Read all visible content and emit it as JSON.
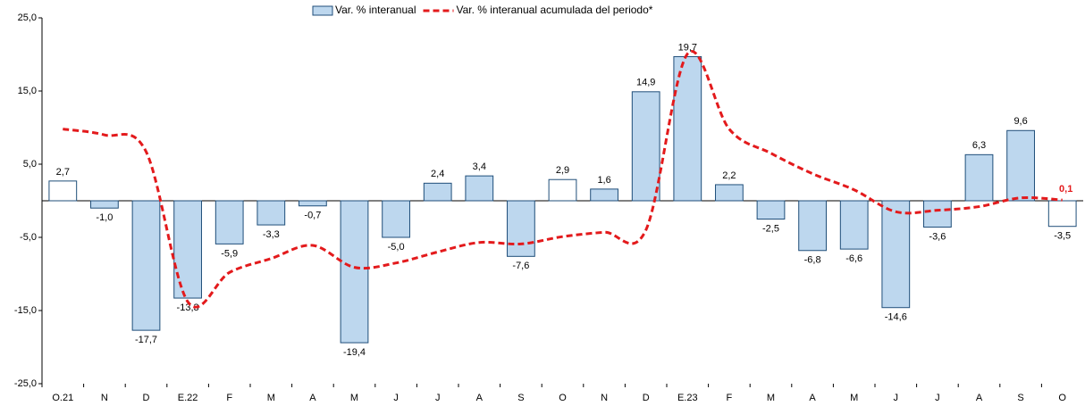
{
  "chart_data": {
    "type": "bar",
    "categories": [
      "O.21",
      "N",
      "D",
      "E.22",
      "F",
      "M",
      "A",
      "M",
      "J",
      "J",
      "A",
      "S",
      "O",
      "N",
      "D",
      "E.23",
      "F",
      "M",
      "A",
      "M",
      "J",
      "J",
      "A",
      "S",
      "O"
    ],
    "series": [
      {
        "name": "Var. % interanual",
        "type": "bar",
        "color": "#bdd7ee",
        "edge_color": "#1f4e79",
        "colors": [
          "#ffffff",
          "#bdd7ee",
          "#bdd7ee",
          "#bdd7ee",
          "#bdd7ee",
          "#bdd7ee",
          "#bdd7ee",
          "#bdd7ee",
          "#bdd7ee",
          "#bdd7ee",
          "#bdd7ee",
          "#bdd7ee",
          "#ffffff",
          "#bdd7ee",
          "#bdd7ee",
          "#bdd7ee",
          "#bdd7ee",
          "#bdd7ee",
          "#bdd7ee",
          "#bdd7ee",
          "#bdd7ee",
          "#bdd7ee",
          "#bdd7ee",
          "#bdd7ee",
          "#ffffff"
        ],
        "values": [
          2.7,
          -1.0,
          -17.7,
          -13.3,
          -5.9,
          -3.3,
          -0.7,
          -19.4,
          -5.0,
          2.4,
          3.4,
          -7.6,
          2.9,
          1.6,
          14.9,
          19.7,
          2.2,
          -2.5,
          -6.8,
          -6.6,
          -14.6,
          -3.6,
          6.3,
          9.6,
          -3.5
        ],
        "value_labels": [
          "2,7",
          "-1,0",
          "-17,7",
          "-13,3",
          "-5,9",
          "-3,3",
          "-0,7",
          "-19,4",
          "-5,0",
          "2,4",
          "3,4",
          "-7,6",
          "2,9",
          "1,6",
          "14,9",
          "19,7",
          "2,2",
          "-2,5",
          "-6,8",
          "-6,6",
          "-14,6",
          "-3,6",
          "6,3",
          "9,6",
          "-3,5"
        ]
      },
      {
        "name": "Var. % interanual acumulada del periodo*",
        "type": "line",
        "color": "#e31a1c",
        "values": [
          9.8,
          9.0,
          6.7,
          -13.8,
          -9.8,
          -7.9,
          -6.1,
          -9.1,
          -8.5,
          -7.0,
          -5.7,
          -5.9,
          -4.9,
          -4.3,
          -4.0,
          20.1,
          9.8,
          6.5,
          3.7,
          1.5,
          -1.5,
          -1.3,
          -0.8,
          0.4,
          0.1
        ],
        "value_labels": [
          null,
          null,
          null,
          null,
          null,
          null,
          null,
          null,
          null,
          null,
          null,
          null,
          null,
          null,
          null,
          null,
          null,
          null,
          null,
          null,
          null,
          null,
          null,
          null,
          "0,1"
        ]
      }
    ],
    "ylim": [
      -25,
      25
    ],
    "yticks": [
      {
        "value": -25,
        "label": "-25,0"
      },
      {
        "value": -15,
        "label": "-15,0"
      },
      {
        "value": -5,
        "label": "-5,0"
      },
      {
        "value": 5,
        "label": "5,0"
      },
      {
        "value": 15,
        "label": "15,0"
      },
      {
        "value": 25,
        "label": "25,0"
      }
    ],
    "legend": "top",
    "grid": false
  }
}
